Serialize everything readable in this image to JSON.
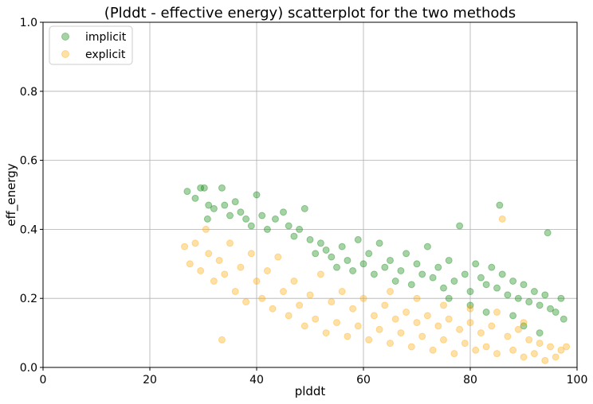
{
  "chart_data": {
    "type": "scatter",
    "title": "(Plddt - effective energy) scatterplot for the two methods",
    "xlabel": "plddt",
    "ylabel": "eff_energy",
    "xlim": [
      0,
      100
    ],
    "ylim": [
      0,
      1.0
    ],
    "x_ticks": [
      0,
      20,
      40,
      60,
      80,
      100
    ],
    "y_ticks": [
      0.0,
      0.2,
      0.4,
      0.6,
      0.8,
      1.0
    ],
    "x_tick_labels": [
      "0",
      "20",
      "40",
      "60",
      "80",
      "100"
    ],
    "y_tick_labels": [
      "0.0",
      "0.2",
      "0.4",
      "0.6",
      "0.8",
      "1.0"
    ],
    "grid": true,
    "legend_position": "top-left",
    "series": [
      {
        "name": "implicit",
        "color": "#008000",
        "opacity": 0.35,
        "points": [
          [
            27.0,
            0.51
          ],
          [
            28.5,
            0.49
          ],
          [
            29.5,
            0.52
          ],
          [
            30.2,
            0.52
          ],
          [
            31.0,
            0.47
          ],
          [
            30.8,
            0.43
          ],
          [
            32.0,
            0.46
          ],
          [
            33.5,
            0.52
          ],
          [
            34.0,
            0.47
          ],
          [
            35.0,
            0.44
          ],
          [
            36.0,
            0.48
          ],
          [
            37.0,
            0.45
          ],
          [
            38.0,
            0.43
          ],
          [
            39.0,
            0.41
          ],
          [
            40.0,
            0.5
          ],
          [
            41.0,
            0.44
          ],
          [
            42.0,
            0.4
          ],
          [
            43.5,
            0.43
          ],
          [
            45.0,
            0.45
          ],
          [
            46.0,
            0.41
          ],
          [
            47.0,
            0.38
          ],
          [
            48.0,
            0.4
          ],
          [
            49.0,
            0.46
          ],
          [
            50.0,
            0.37
          ],
          [
            51.0,
            0.33
          ],
          [
            52.0,
            0.36
          ],
          [
            53.0,
            0.34
          ],
          [
            54.0,
            0.32
          ],
          [
            55.0,
            0.29
          ],
          [
            56.0,
            0.35
          ],
          [
            57.0,
            0.31
          ],
          [
            58.0,
            0.28
          ],
          [
            59.0,
            0.37
          ],
          [
            60.0,
            0.3
          ],
          [
            61.0,
            0.33
          ],
          [
            62.0,
            0.27
          ],
          [
            63.0,
            0.36
          ],
          [
            64.0,
            0.29
          ],
          [
            65.0,
            0.31
          ],
          [
            66.0,
            0.25
          ],
          [
            67.0,
            0.28
          ],
          [
            68.0,
            0.33
          ],
          [
            69.0,
            0.24
          ],
          [
            70.0,
            0.3
          ],
          [
            71.0,
            0.27
          ],
          [
            72.0,
            0.35
          ],
          [
            73.0,
            0.26
          ],
          [
            74.0,
            0.29
          ],
          [
            75.0,
            0.23
          ],
          [
            76.0,
            0.31
          ],
          [
            77.0,
            0.25
          ],
          [
            78.0,
            0.41
          ],
          [
            79.0,
            0.27
          ],
          [
            80.0,
            0.22
          ],
          [
            81.0,
            0.3
          ],
          [
            82.0,
            0.26
          ],
          [
            83.0,
            0.24
          ],
          [
            84.0,
            0.29
          ],
          [
            85.0,
            0.23
          ],
          [
            85.5,
            0.47
          ],
          [
            86.0,
            0.27
          ],
          [
            87.0,
            0.21
          ],
          [
            88.0,
            0.25
          ],
          [
            89.0,
            0.2
          ],
          [
            90.0,
            0.24
          ],
          [
            91.0,
            0.19
          ],
          [
            92.0,
            0.22
          ],
          [
            93.0,
            0.18
          ],
          [
            94.0,
            0.21
          ],
          [
            94.5,
            0.39
          ],
          [
            95.0,
            0.17
          ],
          [
            96.0,
            0.16
          ],
          [
            97.0,
            0.2
          ],
          [
            97.5,
            0.14
          ],
          [
            76.0,
            0.2
          ],
          [
            80.0,
            0.18
          ],
          [
            83.0,
            0.16
          ],
          [
            88.0,
            0.15
          ],
          [
            90.0,
            0.12
          ],
          [
            93.0,
            0.1
          ]
        ]
      },
      {
        "name": "explicit",
        "color": "#FFA500",
        "opacity": 0.35,
        "points": [
          [
            26.5,
            0.35
          ],
          [
            27.5,
            0.3
          ],
          [
            28.5,
            0.36
          ],
          [
            29.5,
            0.28
          ],
          [
            30.5,
            0.4
          ],
          [
            31.0,
            0.33
          ],
          [
            32.0,
            0.25
          ],
          [
            33.0,
            0.31
          ],
          [
            33.5,
            0.08
          ],
          [
            34.0,
            0.27
          ],
          [
            35.0,
            0.36
          ],
          [
            36.0,
            0.22
          ],
          [
            37.0,
            0.29
          ],
          [
            38.0,
            0.19
          ],
          [
            39.0,
            0.33
          ],
          [
            40.0,
            0.25
          ],
          [
            41.0,
            0.2
          ],
          [
            42.0,
            0.28
          ],
          [
            43.0,
            0.17
          ],
          [
            44.0,
            0.32
          ],
          [
            45.0,
            0.22
          ],
          [
            46.0,
            0.15
          ],
          [
            47.0,
            0.25
          ],
          [
            48.0,
            0.18
          ],
          [
            49.0,
            0.12
          ],
          [
            50.0,
            0.21
          ],
          [
            51.0,
            0.14
          ],
          [
            52.0,
            0.27
          ],
          [
            53.0,
            0.1
          ],
          [
            54.0,
            0.19
          ],
          [
            55.0,
            0.13
          ],
          [
            56.0,
            0.22
          ],
          [
            57.0,
            0.09
          ],
          [
            58.0,
            0.17
          ],
          [
            59.0,
            0.12
          ],
          [
            60.0,
            0.2
          ],
          [
            61.0,
            0.08
          ],
          [
            62.0,
            0.15
          ],
          [
            63.0,
            0.11
          ],
          [
            64.0,
            0.18
          ],
          [
            65.0,
            0.07
          ],
          [
            66.0,
            0.14
          ],
          [
            67.0,
            0.1
          ],
          [
            68.0,
            0.16
          ],
          [
            69.0,
            0.06
          ],
          [
            70.0,
            0.13
          ],
          [
            71.0,
            0.09
          ],
          [
            72.0,
            0.15
          ],
          [
            73.0,
            0.05
          ],
          [
            74.0,
            0.12
          ],
          [
            75.0,
            0.08
          ],
          [
            76.0,
            0.14
          ],
          [
            77.0,
            0.04
          ],
          [
            78.0,
            0.11
          ],
          [
            79.0,
            0.07
          ],
          [
            80.0,
            0.13
          ],
          [
            81.0,
            0.05
          ],
          [
            82.0,
            0.1
          ],
          [
            83.0,
            0.06
          ],
          [
            84.0,
            0.12
          ],
          [
            85.0,
            0.04
          ],
          [
            86.0,
            0.43
          ],
          [
            87.0,
            0.09
          ],
          [
            88.0,
            0.05
          ],
          [
            89.0,
            0.11
          ],
          [
            90.0,
            0.03
          ],
          [
            91.0,
            0.08
          ],
          [
            92.0,
            0.04
          ],
          [
            93.0,
            0.07
          ],
          [
            94.0,
            0.02
          ],
          [
            95.0,
            0.06
          ],
          [
            96.0,
            0.03
          ],
          [
            97.0,
            0.05
          ],
          [
            98.0,
            0.06
          ],
          [
            70.0,
            0.2
          ],
          [
            75.0,
            0.18
          ],
          [
            80.0,
            0.17
          ],
          [
            85.0,
            0.16
          ],
          [
            90.0,
            0.13
          ],
          [
            65.0,
            0.22
          ]
        ]
      }
    ]
  }
}
